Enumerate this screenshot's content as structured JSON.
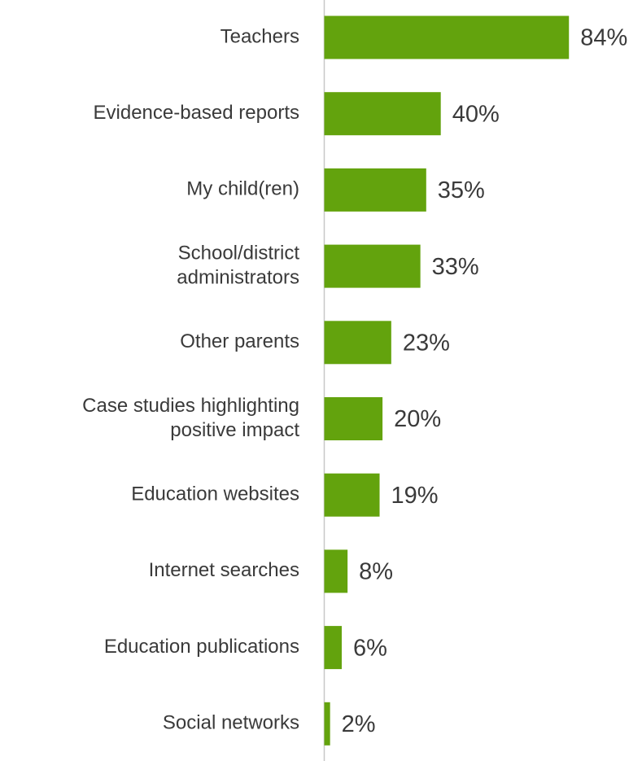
{
  "chart_data": {
    "type": "bar",
    "orientation": "horizontal",
    "categories": [
      [
        "Teachers"
      ],
      [
        "Evidence-based reports"
      ],
      [
        "My child(ren)"
      ],
      [
        "School/district",
        "administrators"
      ],
      [
        "Other parents"
      ],
      [
        "Case studies highlighting",
        "positive impact"
      ],
      [
        "Education websites"
      ],
      [
        "Internet searches"
      ],
      [
        "Education publications"
      ],
      [
        "Social networks"
      ]
    ],
    "values": [
      84,
      40,
      35,
      33,
      23,
      20,
      19,
      8,
      6,
      2
    ],
    "value_labels": [
      "84%",
      "40%",
      "35%",
      "33%",
      "23%",
      "20%",
      "19%",
      "8%",
      "6%",
      "2%"
    ],
    "color": "#63a30d",
    "xlim": [
      0,
      100
    ]
  }
}
